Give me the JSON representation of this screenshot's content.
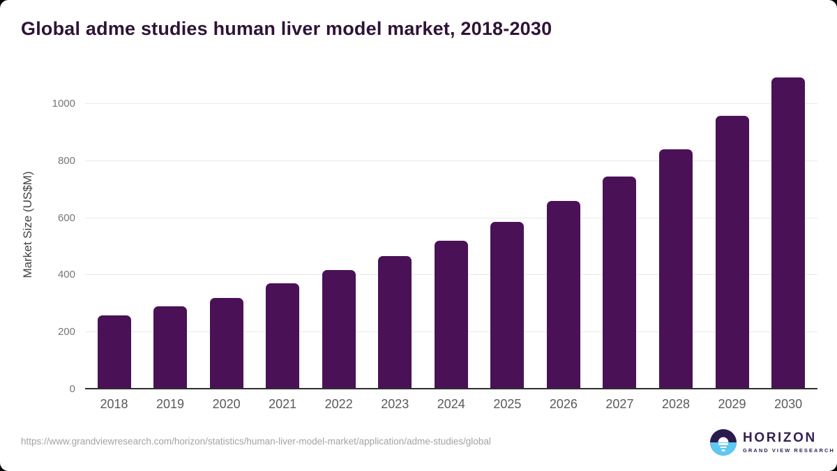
{
  "page": {
    "title": "Global adme studies human liver model market, 2018-2030",
    "source_url": "https://www.grandviewresearch.com/horizon/statistics/human-liver-model-market/application/adme-studies/global"
  },
  "branding": {
    "name": "HORIZON",
    "tagline": "GRAND VIEW RESEARCH"
  },
  "chart_data": {
    "type": "bar",
    "title": "Global adme studies human liver model market, 2018-2030",
    "categories": [
      "2018",
      "2019",
      "2020",
      "2021",
      "2022",
      "2023",
      "2024",
      "2025",
      "2026",
      "2027",
      "2028",
      "2029",
      "2030"
    ],
    "values": [
      260,
      291,
      321,
      372,
      418,
      466,
      522,
      587,
      660,
      745,
      842,
      958,
      1092
    ],
    "xlabel": "",
    "ylabel": "Market Size (US$M)",
    "ylim": [
      0,
      1150
    ],
    "yticks": [
      0,
      200,
      400,
      600,
      800,
      1000
    ],
    "grid": "horizontal",
    "legend": "none",
    "bar_color": "#4a1157"
  },
  "colors": {
    "title": "#2f1338",
    "bar": "#4a1157",
    "axis_line": "#2e2e2e",
    "gridline": "#e9e9eb",
    "y_tick_label": "#767676",
    "x_tick_label": "#5a5a5a",
    "source_url": "#a3a3a3",
    "logo_dark": "#2a1a4e",
    "logo_water": "#5ec8f2",
    "logo_text": "#322253"
  }
}
